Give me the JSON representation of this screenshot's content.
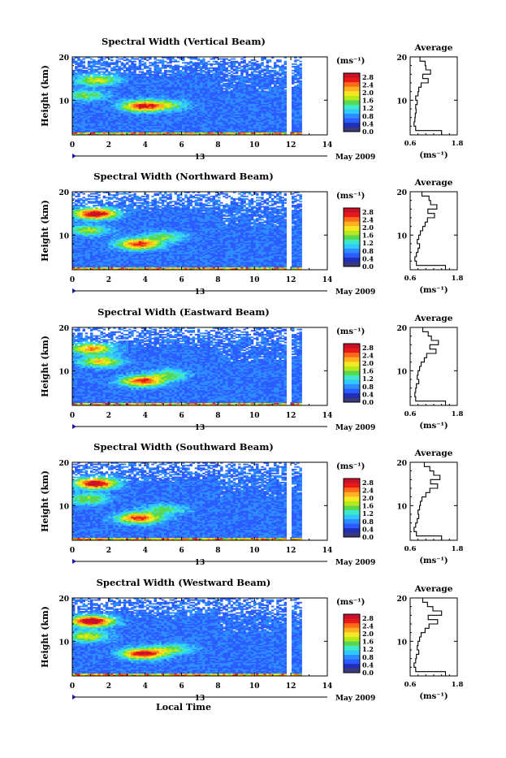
{
  "chart_data": {
    "type": "heatmap",
    "figure_xlabel": "Local Time",
    "date_day": "13",
    "date_suffix": "May 2009",
    "panels": [
      {
        "title": "Spectral Width (Vertical Beam)",
        "hotspots": [
          [
            3.8,
            8.5,
            2.0
          ],
          [
            1.3,
            14.5,
            1.2
          ],
          [
            0.7,
            11.0,
            0.9
          ],
          [
            5.2,
            8.8,
            0.8
          ]
        ]
      },
      {
        "title": "Spectral Width (Northward Beam)",
        "hotspots": [
          [
            1.2,
            14.8,
            2.4
          ],
          [
            3.6,
            7.8,
            2.0
          ],
          [
            0.8,
            11.0,
            1.0
          ],
          [
            5.0,
            9.5,
            0.8
          ]
        ]
      },
      {
        "title": "Spectral Width (Eastward Beam)",
        "hotspots": [
          [
            3.8,
            7.5,
            2.0
          ],
          [
            1.0,
            15.0,
            1.7
          ],
          [
            1.5,
            12.0,
            1.4
          ],
          [
            5.2,
            9.0,
            0.8
          ]
        ]
      },
      {
        "title": "Spectral Width (Southward Beam)",
        "hotspots": [
          [
            1.2,
            15.0,
            2.4
          ],
          [
            3.6,
            7.0,
            2.0
          ],
          [
            0.8,
            11.5,
            1.0
          ],
          [
            5.0,
            9.0,
            0.8
          ]
        ]
      },
      {
        "title": "Spectral Width (Westward Beam)",
        "hotspots": [
          [
            1.0,
            14.5,
            2.6
          ],
          [
            3.8,
            7.0,
            2.2
          ],
          [
            0.8,
            11.0,
            1.2
          ],
          [
            5.4,
            8.0,
            0.9
          ]
        ]
      }
    ],
    "heatmap": {
      "x_range": [
        0,
        14
      ],
      "y_range": [
        2,
        20
      ],
      "x_ticks": [
        0,
        2,
        4,
        6,
        8,
        10,
        12,
        14
      ],
      "y_ticks": [
        10,
        20
      ],
      "xlabel": "",
      "ylabel": "Height (km)",
      "data_gap_x": [
        11.75,
        12.0
      ],
      "data_end_x": 12.6
    },
    "colorbar": {
      "unit": "(ms⁻¹)",
      "range": [
        0.0,
        3.0
      ],
      "ticks": [
        "0.0",
        "0.4",
        "0.8",
        "1.2",
        "1.6",
        "2.0",
        "2.4",
        "2.8"
      ],
      "colors": [
        "#3a3a7a",
        "#1f2fb8",
        "#2a5cff",
        "#2f8cff",
        "#2fc8ff",
        "#3ee8c8",
        "#58d850",
        "#b8e81a",
        "#f4e820",
        "#ffb020",
        "#ff6a18",
        "#e81818",
        "#c81028"
      ]
    },
    "profile": {
      "title": "Average",
      "xlabel": "(ms⁻¹)",
      "x_range": [
        0.6,
        1.8
      ],
      "x_ticks": [
        "0.6",
        "1.8"
      ],
      "y_range": [
        2,
        20
      ],
      "y_ticks": [
        10,
        20
      ],
      "heights": [
        2.5,
        3.5,
        4.5,
        5.5,
        6.5,
        7.5,
        8.5,
        9.5,
        10.5,
        11.5,
        12.5,
        13.5,
        14.5,
        15.5,
        16.5,
        17.5,
        18.5,
        19.5
      ],
      "series": [
        [
          1.4,
          0.74,
          0.7,
          0.72,
          0.73,
          0.75,
          0.74,
          0.78,
          0.74,
          0.8,
          0.82,
          0.88,
          1.06,
          0.92,
          1.12,
          1.0,
          0.98,
          0.85
        ],
        [
          1.5,
          0.76,
          0.72,
          0.76,
          0.8,
          0.84,
          0.78,
          0.82,
          0.86,
          0.92,
          0.98,
          1.04,
          1.22,
          1.05,
          1.28,
          1.12,
          1.08,
          0.9
        ],
        [
          1.5,
          0.74,
          0.72,
          0.74,
          0.76,
          0.82,
          0.78,
          0.8,
          0.84,
          0.88,
          0.96,
          1.02,
          1.26,
          1.1,
          1.32,
          1.14,
          1.06,
          0.92
        ],
        [
          1.4,
          0.76,
          0.7,
          0.74,
          0.78,
          0.82,
          0.8,
          0.84,
          0.86,
          0.9,
          1.0,
          1.1,
          1.3,
          1.12,
          1.36,
          1.2,
          1.1,
          0.96
        ],
        [
          1.5,
          0.74,
          0.7,
          0.74,
          0.76,
          0.82,
          0.78,
          0.8,
          0.84,
          0.88,
          0.98,
          1.08,
          1.3,
          1.06,
          1.4,
          1.18,
          1.04,
          0.92
        ]
      ]
    }
  }
}
